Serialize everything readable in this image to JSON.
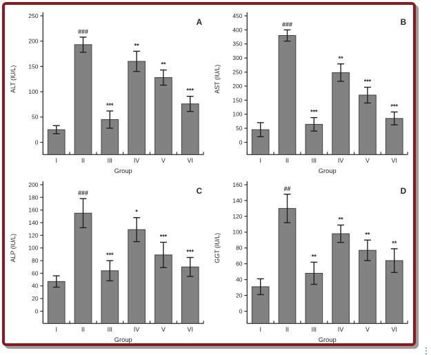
{
  "page": {
    "background_color": "#ffffff",
    "frame_border_color": "#8E191D",
    "frame_shadow_color": "#9c9c9c"
  },
  "chart_style": {
    "bar_fill": "#828282",
    "bar_stroke": "#3f3f3f",
    "axis_color": "#2b2b2b",
    "text_color": "#262626",
    "error_bar_color": "#1f1f1f"
  },
  "chart_data": [
    {
      "type": "bar",
      "panel_label": "A",
      "ylabel": "ALT (IU/L)",
      "xlabel": "Group",
      "categories": [
        "I",
        "II",
        "III",
        "IV",
        "V",
        "VI"
      ],
      "values": [
        25,
        193,
        45,
        160,
        128,
        76
      ],
      "errors": [
        8,
        15,
        17,
        20,
        15,
        15
      ],
      "sig_labels": [
        "",
        "###",
        "***",
        "**",
        "**",
        "***"
      ],
      "ylim": [
        0,
        250
      ],
      "ytick_step": 50,
      "grid": false,
      "legend": false
    },
    {
      "type": "bar",
      "panel_label": "B",
      "ylabel": "AST (IU/L)",
      "xlabel": "Group",
      "categories": [
        "I",
        "II",
        "III",
        "IV",
        "V",
        "VI"
      ],
      "values": [
        45,
        380,
        64,
        248,
        168,
        85
      ],
      "errors": [
        25,
        20,
        24,
        31,
        28,
        23
      ],
      "sig_labels": [
        "",
        "###",
        "***",
        "**",
        "***",
        "***"
      ],
      "ylim": [
        0,
        450
      ],
      "ytick_step": 50,
      "grid": false,
      "legend": false
    },
    {
      "type": "bar",
      "panel_label": "C",
      "ylabel": "ALP (IU/L)",
      "xlabel": "Group",
      "categories": [
        "I",
        "II",
        "III",
        "IV",
        "V",
        "VI"
      ],
      "values": [
        47,
        155,
        64,
        129,
        89,
        70
      ],
      "errors": [
        9,
        23,
        16,
        19,
        20,
        15
      ],
      "sig_labels": [
        "",
        "###",
        "***",
        "*",
        "***",
        "***"
      ],
      "ylim": [
        0,
        200
      ],
      "ytick_step": 20,
      "grid": false,
      "legend": false
    },
    {
      "type": "bar",
      "panel_label": "D",
      "ylabel": "GGT (IU/L)",
      "xlabel": "Group",
      "categories": [
        "I",
        "II",
        "III",
        "IV",
        "V",
        "VI"
      ],
      "values": [
        31,
        130,
        48,
        98,
        77,
        64
      ],
      "errors": [
        10,
        18,
        14,
        11,
        13,
        15
      ],
      "sig_labels": [
        "",
        "##",
        "**",
        "**",
        "**",
        "**"
      ],
      "ylim": [
        0,
        160
      ],
      "ytick_step": 20,
      "grid": false,
      "legend": false
    }
  ]
}
